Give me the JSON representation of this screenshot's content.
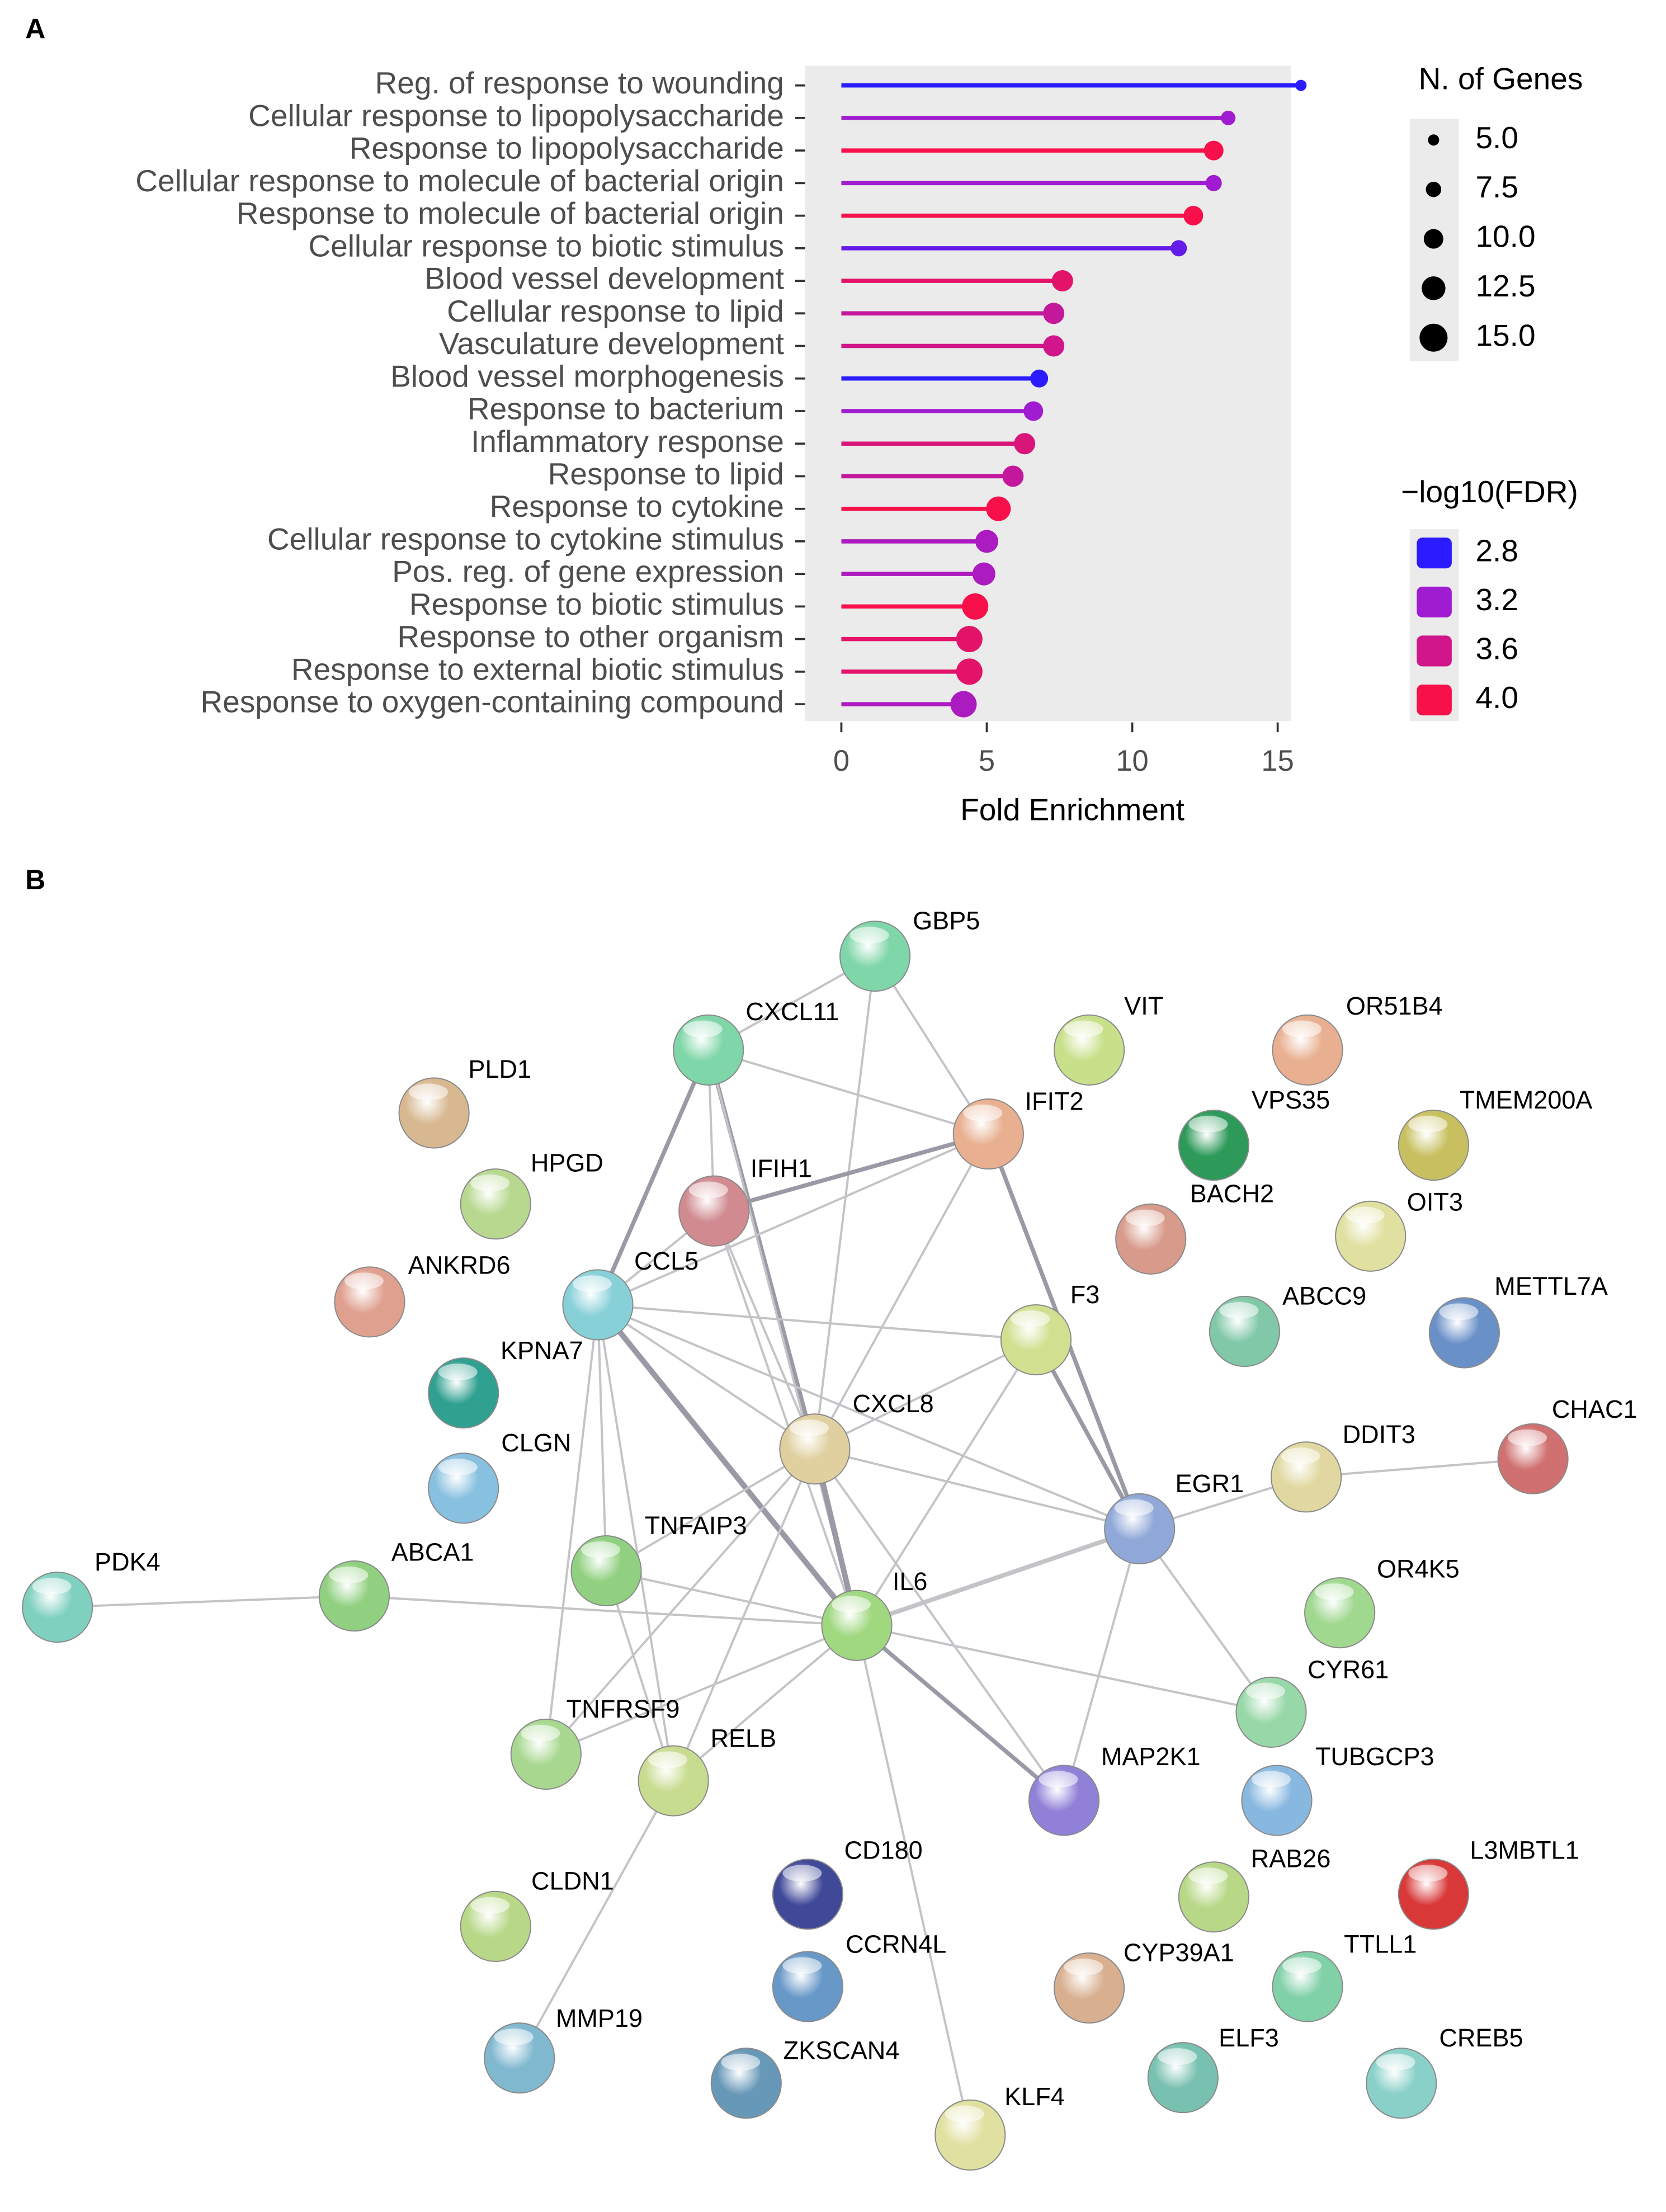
{
  "panel_labels": [
    "A",
    "B"
  ],
  "chart_data": {
    "type": "lollipop",
    "categories": [
      "Reg. of response to wounding",
      "Cellular response to lipopolysaccharide",
      "Response to lipopolysaccharide",
      "Cellular response to molecule of bacterial origin",
      "Response to molecule of bacterial origin",
      "Cellular response to biotic stimulus",
      "Blood vessel development",
      "Cellular response to lipid",
      "Vasculature development",
      "Blood vessel morphogenesis",
      "Response to bacterium",
      "Inflammatory response",
      "Response to lipid",
      "Response to cytokine",
      "Cellular response to cytokine stimulus",
      "Pos. reg. of gene expression",
      "Response to biotic stimulus",
      "Response to other organism",
      "Response to external biotic stimulus",
      "Response to oxygen-containing compound"
    ],
    "values": [
      15.8,
      13.3,
      12.8,
      12.8,
      12.1,
      11.6,
      7.6,
      7.3,
      7.3,
      6.8,
      6.6,
      6.3,
      5.9,
      5.4,
      5.0,
      4.9,
      4.6,
      4.4,
      4.4,
      4.2
    ],
    "sizes": [
      5,
      7,
      10,
      8,
      10,
      8,
      11,
      11,
      11,
      9,
      10,
      11,
      11,
      13,
      12,
      12,
      14,
      14,
      14,
      14
    ],
    "fdr": [
      2.7,
      3.2,
      4.0,
      3.2,
      4.0,
      3.0,
      3.8,
      3.5,
      3.6,
      2.8,
      3.2,
      3.7,
      3.5,
      4.0,
      3.3,
      3.3,
      4.0,
      3.8,
      3.8,
      3.3
    ],
    "x_label": "Fold Enrichment",
    "xlim": [
      -1.25,
      15.45
    ],
    "xticks": [
      0,
      5,
      10,
      15
    ],
    "grid": false,
    "size_legend": {
      "title": "N. of Genes",
      "ticks": [
        {
          "value": 5,
          "label": "5.0"
        },
        {
          "value": 7.5,
          "label": "7.5"
        },
        {
          "value": 10,
          "label": "10.0"
        },
        {
          "value": 12.5,
          "label": "12.5"
        },
        {
          "value": 15,
          "label": "15.0"
        }
      ]
    },
    "color_legend": {
      "title": "−log10(FDR)",
      "ticks": [
        2.8,
        3.2,
        3.6,
        {
          "value": 4,
          "label": "4.0"
        }
      ],
      "colors": [
        "#2a1cff",
        "#a01cd0",
        "#d0168a",
        "#f8104a"
      ]
    }
  },
  "network": {
    "nodes": [
      "GBP5",
      "CXCL11",
      "VIT",
      "OR51B4",
      "PLD1",
      "IFIT2",
      "VPS35",
      "TMEM200A",
      "HPGD",
      "IFIH1",
      "BACH2",
      "OIT3",
      "ANKRD6",
      "CCL5",
      "F3",
      "ABCC9",
      "METTL7A",
      "KPNA7",
      "CXCL8",
      "CHAC1",
      "DDIT3",
      "CLGN",
      "EGR1",
      "TNFAIP3",
      "ABCA1",
      "PDK4",
      "IL6",
      "OR4K5",
      "CYR61",
      "TNFRSF9",
      "RELB",
      "MAP2K1",
      "TUBGCP3",
      "CD180",
      "L3MBTL1",
      "RAB26",
      "CLDN1",
      "CCRN4L",
      "CYP39A1",
      "TTLL1",
      "MMP19",
      "ZKSCAN4",
      "ELF3",
      "CREB5",
      "KLF4"
    ]
  }
}
